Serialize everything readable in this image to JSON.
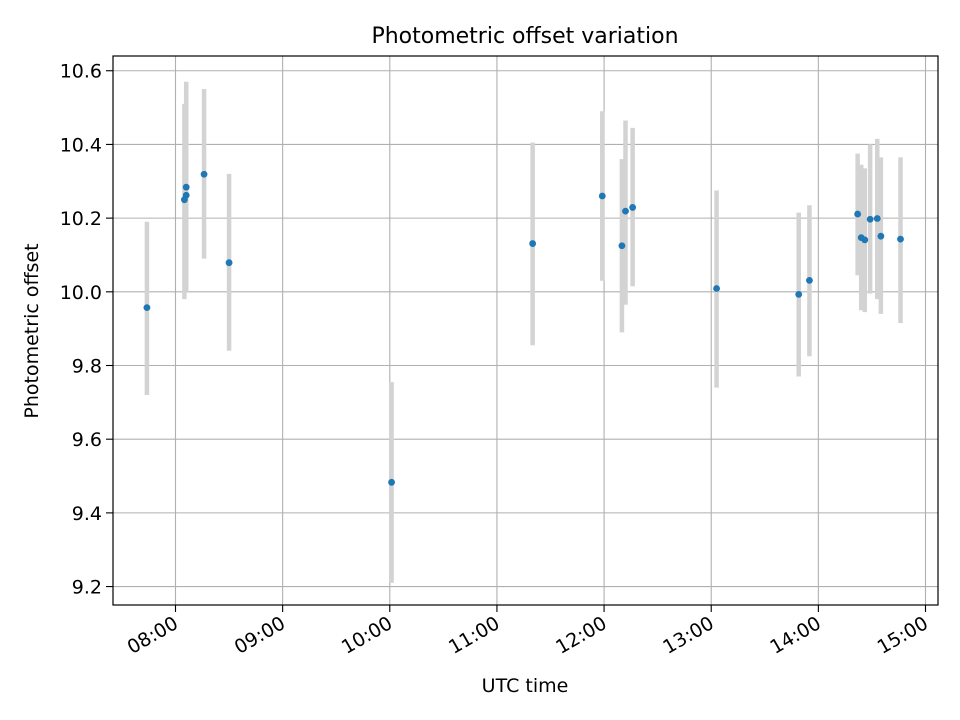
{
  "chart_data": {
    "type": "scatter",
    "title": "Photometric offset variation",
    "xlabel": "UTC time",
    "ylabel": "Photometric offset",
    "xlim": [
      "07:25",
      "15:07"
    ],
    "ylim": [
      9.15,
      10.64
    ],
    "x_ticks": [
      "08:00",
      "09:00",
      "10:00",
      "11:00",
      "12:00",
      "13:00",
      "14:00",
      "15:00"
    ],
    "y_ticks": [
      "9.2",
      "9.4",
      "9.6",
      "9.8",
      "10.0",
      "10.2",
      "10.4",
      "10.6"
    ],
    "grid": true,
    "point_color": "#1f77b4",
    "errorbar_color": "#d3d3d3",
    "points": [
      {
        "time": "07:44",
        "y": 9.957,
        "yerr_low": 9.72,
        "yerr_high": 10.19
      },
      {
        "time": "08:05",
        "y": 10.25,
        "yerr_low": 9.98,
        "yerr_high": 10.51
      },
      {
        "time": "08:06",
        "y": 10.262,
        "yerr_low": 10.0,
        "yerr_high": 10.54
      },
      {
        "time": "08:06",
        "y": 10.284,
        "yerr_low": 10.0,
        "yerr_high": 10.57
      },
      {
        "time": "08:16",
        "y": 10.319,
        "yerr_low": 10.09,
        "yerr_high": 10.55
      },
      {
        "time": "08:30",
        "y": 10.079,
        "yerr_low": 9.84,
        "yerr_high": 10.32
      },
      {
        "time": "10:01",
        "y": 9.483,
        "yerr_low": 9.21,
        "yerr_high": 9.755
      },
      {
        "time": "11:20",
        "y": 10.131,
        "yerr_low": 9.855,
        "yerr_high": 10.405
      },
      {
        "time": "11:59",
        "y": 10.26,
        "yerr_low": 10.03,
        "yerr_high": 10.49
      },
      {
        "time": "12:10",
        "y": 10.125,
        "yerr_low": 9.89,
        "yerr_high": 10.36
      },
      {
        "time": "12:12",
        "y": 10.219,
        "yerr_low": 9.965,
        "yerr_high": 10.465
      },
      {
        "time": "12:16",
        "y": 10.229,
        "yerr_low": 10.015,
        "yerr_high": 10.445
      },
      {
        "time": "13:03",
        "y": 10.009,
        "yerr_low": 9.74,
        "yerr_high": 10.275
      },
      {
        "time": "13:49",
        "y": 9.993,
        "yerr_low": 9.77,
        "yerr_high": 10.215
      },
      {
        "time": "13:55",
        "y": 10.031,
        "yerr_low": 9.825,
        "yerr_high": 10.235
      },
      {
        "time": "14:22",
        "y": 10.211,
        "yerr_low": 10.045,
        "yerr_high": 10.375
      },
      {
        "time": "14:24",
        "y": 10.147,
        "yerr_low": 9.95,
        "yerr_high": 10.345
      },
      {
        "time": "14:26",
        "y": 10.141,
        "yerr_low": 9.945,
        "yerr_high": 10.335
      },
      {
        "time": "14:29",
        "y": 10.197,
        "yerr_low": 9.995,
        "yerr_high": 10.4
      },
      {
        "time": "14:33",
        "y": 10.199,
        "yerr_low": 9.98,
        "yerr_high": 10.415
      },
      {
        "time": "14:35",
        "y": 10.151,
        "yerr_low": 9.94,
        "yerr_high": 10.365
      },
      {
        "time": "14:46",
        "y": 10.143,
        "yerr_low": 9.915,
        "yerr_high": 10.365
      }
    ]
  }
}
